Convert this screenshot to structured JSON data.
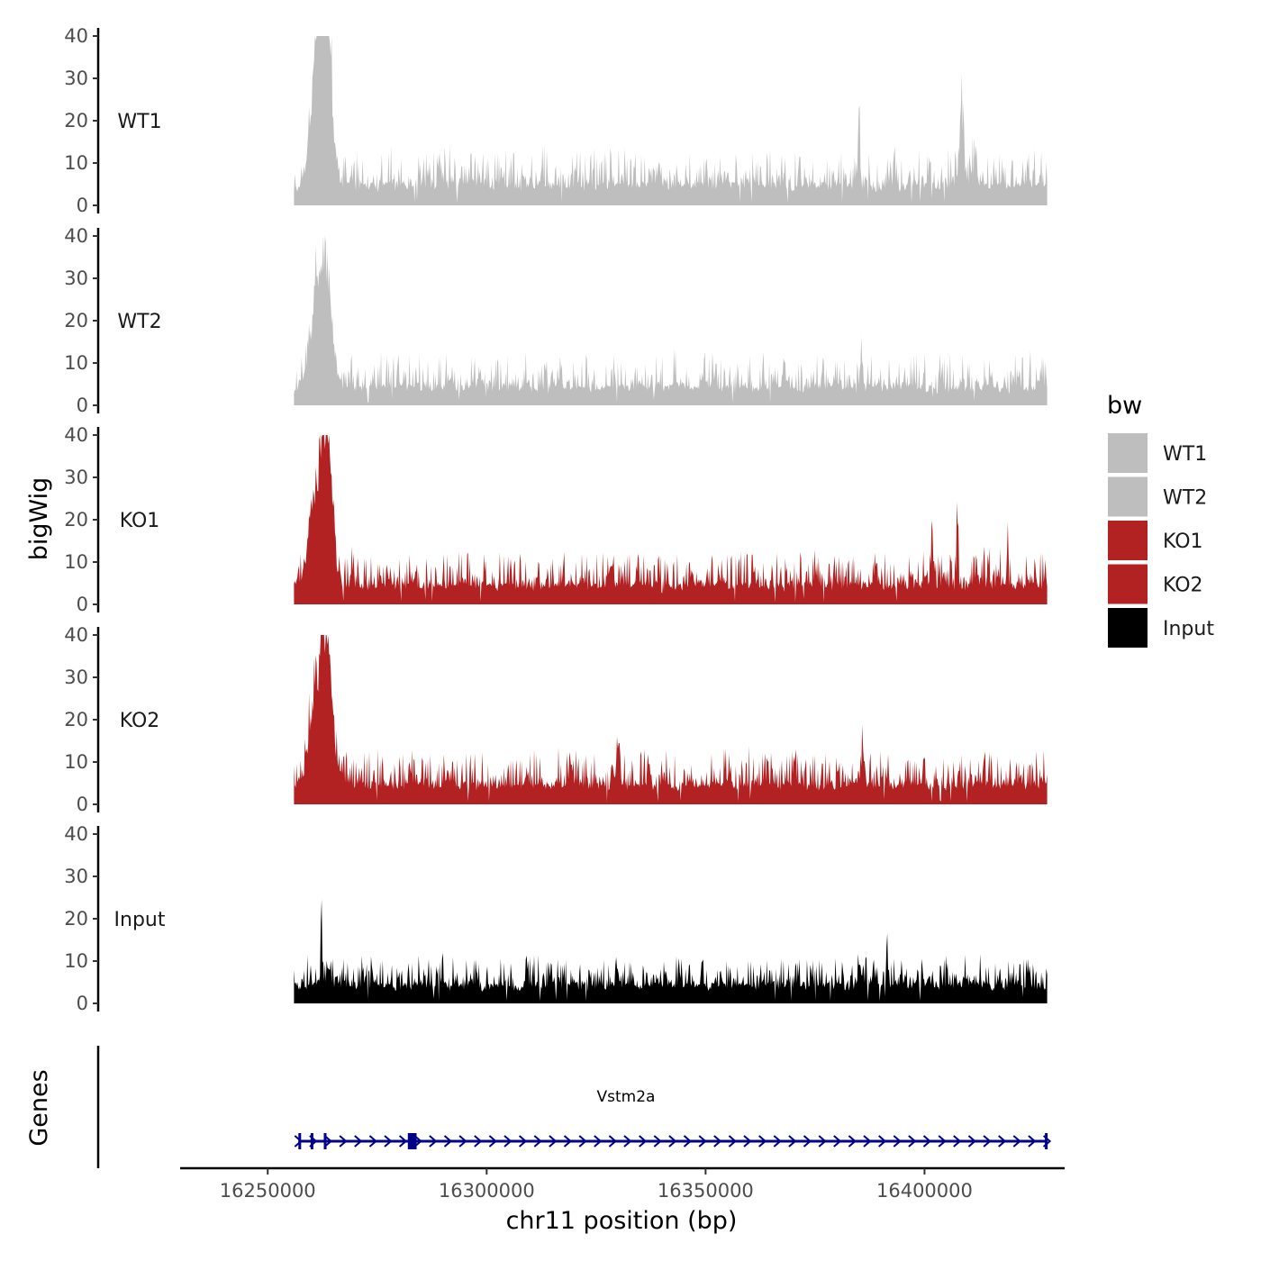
{
  "chart_data": {
    "type": "area",
    "chromosome": "chr11",
    "xlabel": "chr11 position (bp)",
    "ylabel": "bigWig",
    "genes_label": "Genes",
    "xlim": [
      16230000,
      16432000
    ],
    "data_range": [
      16256000,
      16428000
    ],
    "xticks": [
      16250000,
      16300000,
      16350000,
      16400000
    ],
    "xtick_labels": [
      "16250000",
      "16300000",
      "16350000",
      "16400000"
    ],
    "ylim": [
      0,
      40
    ],
    "yticks": [
      0,
      10,
      20,
      30,
      40
    ],
    "ytick_labels": [
      "0",
      "10",
      "20",
      "30",
      "40"
    ],
    "legend": {
      "title": "bw",
      "entries": [
        {
          "label": "WT1",
          "color": "#bebebe"
        },
        {
          "label": "WT2",
          "color": "#bebebe"
        },
        {
          "label": "KO1",
          "color": "#b22222"
        },
        {
          "label": "KO2",
          "color": "#b22222"
        },
        {
          "label": "Input",
          "color": "#000000"
        }
      ]
    },
    "series": [
      {
        "name": "WT1",
        "color": "#bebebe",
        "seed": 11,
        "baseline": 4.5,
        "noise": 4.5,
        "peaks": [
          {
            "pos": 16260500,
            "width": 1700,
            "height": 15
          },
          {
            "pos": 16262200,
            "width": 1700,
            "height": 33
          },
          {
            "pos": 16263800,
            "width": 1500,
            "height": 28
          },
          {
            "pos": 16385000,
            "width": 300,
            "height": 13
          },
          {
            "pos": 16408500,
            "width": 700,
            "height": 15
          },
          {
            "pos": 16411500,
            "width": 600,
            "height": 8
          }
        ]
      },
      {
        "name": "WT2",
        "color": "#bebebe",
        "seed": 23,
        "baseline": 4.0,
        "noise": 4.2,
        "peaks": [
          {
            "pos": 16260500,
            "width": 1700,
            "height": 12
          },
          {
            "pos": 16262300,
            "width": 1600,
            "height": 22
          },
          {
            "pos": 16263800,
            "width": 1500,
            "height": 17
          },
          {
            "pos": 16385500,
            "width": 300,
            "height": 11
          }
        ]
      },
      {
        "name": "KO1",
        "color": "#b22222",
        "seed": 37,
        "baseline": 4.2,
        "noise": 4.3,
        "peaks": [
          {
            "pos": 16260000,
            "width": 1700,
            "height": 12
          },
          {
            "pos": 16262300,
            "width": 1600,
            "height": 26
          },
          {
            "pos": 16264000,
            "width": 1500,
            "height": 22
          },
          {
            "pos": 16401800,
            "width": 400,
            "height": 10
          },
          {
            "pos": 16407500,
            "width": 300,
            "height": 16
          },
          {
            "pos": 16419000,
            "width": 400,
            "height": 8
          }
        ]
      },
      {
        "name": "KO2",
        "color": "#b22222",
        "seed": 51,
        "baseline": 4.3,
        "noise": 4.3,
        "peaks": [
          {
            "pos": 16260000,
            "width": 1700,
            "height": 12
          },
          {
            "pos": 16262300,
            "width": 1600,
            "height": 28
          },
          {
            "pos": 16264000,
            "width": 1500,
            "height": 22
          },
          {
            "pos": 16330000,
            "width": 700,
            "height": 7
          },
          {
            "pos": 16386000,
            "width": 500,
            "height": 8
          }
        ]
      },
      {
        "name": "Input",
        "color": "#000000",
        "seed": 73,
        "baseline": 4.0,
        "noise": 3.6,
        "peaks": [
          {
            "pos": 16262200,
            "width": 300,
            "height": 12
          },
          {
            "pos": 16391500,
            "width": 200,
            "height": 11
          },
          {
            "pos": 16385000,
            "width": 400,
            "height": 5
          }
        ]
      }
    ],
    "gene": {
      "name": "Vstm2a",
      "start": 16257000,
      "end": 16428000,
      "strand": "+",
      "color": "#00008b",
      "exons": [
        {
          "start": 16257000,
          "end": 16257400
        },
        {
          "start": 16259800,
          "end": 16260000
        },
        {
          "start": 16262800,
          "end": 16263000
        },
        {
          "start": 16282000,
          "end": 16284000
        },
        {
          "start": 16427500,
          "end": 16428000
        }
      ]
    }
  }
}
